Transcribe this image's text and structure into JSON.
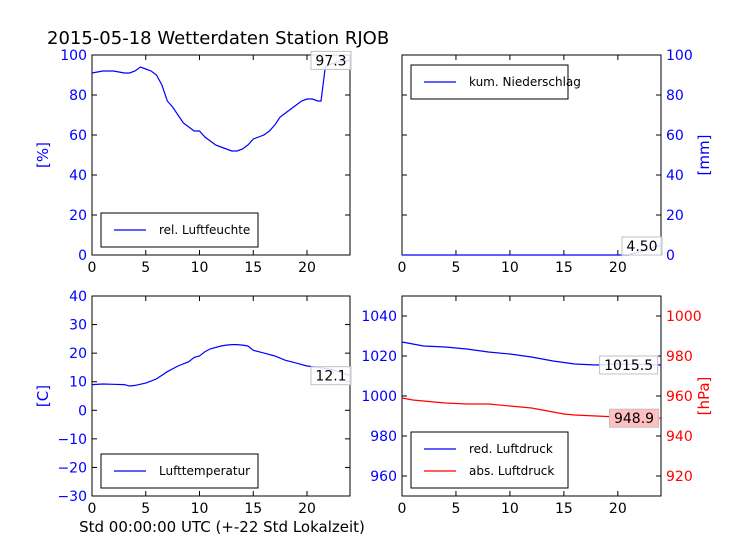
{
  "title": "2015-05-18 Wetterdaten Station RJOB",
  "xlabel": "Std 00:00:00 UTC (+-22 Std Lokalzeit)",
  "colors": {
    "blue": "#0000ff",
    "red": "#ff0000",
    "axis": "#000000",
    "label_bg": "#ffc0c0"
  },
  "chart_data": [
    {
      "type": "line",
      "panel": "top-left",
      "ylabel": "[%]",
      "ylabel_side": "left",
      "xlim": [
        0,
        24
      ],
      "ylim": [
        0,
        100
      ],
      "xticks": [
        0,
        5,
        10,
        15,
        20
      ],
      "yticks": [
        0,
        20,
        40,
        60,
        80,
        100
      ],
      "legend_position": "lower-left",
      "annotation": {
        "text": "97.3",
        "x": 23.5,
        "y": 97.3
      },
      "series": [
        {
          "name": "rel. Luftfeuchte",
          "color": "#0000ff",
          "x": [
            0,
            1,
            2,
            3,
            3.5,
            4,
            4.5,
            5,
            5.5,
            6,
            6.5,
            7,
            7.5,
            8,
            8.5,
            9,
            9.5,
            10,
            10.5,
            11,
            11.5,
            12,
            12.5,
            13,
            13.5,
            14,
            14.5,
            15,
            15.5,
            16,
            16.5,
            17,
            17.5,
            18,
            18.5,
            19,
            19.5,
            20,
            20.5,
            21,
            21.3,
            21.7,
            22,
            22.5,
            23,
            23.5,
            24
          ],
          "y": [
            91,
            92,
            92,
            91,
            91,
            92,
            94,
            93,
            92,
            90,
            85,
            77,
            74,
            70,
            66,
            64,
            62,
            62,
            59,
            57,
            55,
            54,
            53,
            52,
            52,
            53,
            55,
            58,
            59,
            60,
            62,
            65,
            69,
            71,
            73,
            75,
            77,
            78,
            78,
            77,
            77,
            94,
            95,
            96,
            97,
            97,
            97.3
          ]
        }
      ]
    },
    {
      "type": "line",
      "panel": "top-right",
      "ylabel": "[mm]",
      "ylabel_side": "right",
      "xlim": [
        0,
        24
      ],
      "ylim": [
        0,
        100
      ],
      "xticks": [
        0,
        5,
        10,
        15,
        20
      ],
      "yticks": [
        0,
        20,
        40,
        60,
        80,
        100
      ],
      "legend_position": "upper-left",
      "annotation": {
        "text": "4.50",
        "x": 22.5,
        "y": 4.5
      },
      "series": [
        {
          "name": "kum. Niederschlag",
          "color": "#0000ff",
          "x": [
            0,
            21,
            21.5,
            22,
            22.5,
            23,
            23.5,
            24
          ],
          "y": [
            0,
            0,
            1,
            1.5,
            2,
            3,
            4.5,
            4.5
          ]
        }
      ]
    },
    {
      "type": "line",
      "panel": "bottom-left",
      "ylabel": "[C]",
      "ylabel_side": "left",
      "xlim": [
        0,
        24
      ],
      "ylim": [
        -30,
        40
      ],
      "xticks": [
        0,
        5,
        10,
        15,
        20
      ],
      "yticks": [
        -30,
        -20,
        -10,
        0,
        10,
        20,
        30,
        40
      ],
      "legend_position": "lower-left",
      "annotation": {
        "text": "12.1",
        "x": 22.5,
        "y": 12.1
      },
      "series": [
        {
          "name": "Lufttemperatur",
          "color": "#0000ff",
          "x": [
            0,
            1,
            2,
            3,
            3.5,
            4,
            5,
            6,
            7,
            8,
            9,
            9.5,
            10,
            10.5,
            11,
            12,
            12.5,
            13,
            13.5,
            14,
            14.5,
            15,
            16,
            17,
            18,
            19,
            20,
            21,
            22,
            23,
            24
          ],
          "y": [
            9,
            9.2,
            9.1,
            9,
            8.5,
            8.7,
            9.5,
            11,
            13.5,
            15.5,
            17,
            18.5,
            19,
            20.5,
            21.5,
            22.5,
            22.8,
            23,
            23,
            22.8,
            22.5,
            21,
            20,
            19,
            17.5,
            16.5,
            15.5,
            15,
            14.5,
            13.5,
            12.1
          ]
        }
      ]
    },
    {
      "type": "line",
      "panel": "bottom-right",
      "ylabel": "[hPa]",
      "ylabel_side": "right",
      "xlim": [
        0,
        24
      ],
      "ylim_left": [
        950,
        1050
      ],
      "ylim_right": [
        910,
        1010
      ],
      "xticks": [
        0,
        5,
        10,
        15,
        20
      ],
      "yticks_left": [
        960,
        980,
        1000,
        1020,
        1040
      ],
      "yticks_right": [
        920,
        940,
        960,
        980,
        1000
      ],
      "legend_position": "lower-left",
      "annotations": [
        {
          "text": "1015.5",
          "x": 21,
          "y": 1015.5,
          "axis": "left"
        },
        {
          "text": "948.9",
          "x": 21.5,
          "y": 948.9,
          "axis": "right"
        }
      ],
      "series": [
        {
          "name": "red. Luftdruck",
          "color": "#0000ff",
          "axis": "left",
          "x": [
            0,
            2,
            4,
            6,
            8,
            10,
            12,
            14,
            16,
            18,
            20,
            22,
            24
          ],
          "y": [
            1027,
            1025,
            1024.5,
            1023.5,
            1022,
            1021,
            1019.5,
            1017.5,
            1016,
            1015.5,
            1016,
            1015.8,
            1015.5
          ]
        },
        {
          "name": "abs. Luftdruck",
          "color": "#ff0000",
          "axis": "right",
          "x": [
            0,
            1,
            2,
            4,
            6,
            8,
            10,
            11,
            12,
            13,
            14,
            15,
            16,
            18,
            20,
            22,
            24
          ],
          "y": [
            959,
            958,
            957.5,
            956.5,
            956,
            956,
            955,
            954.5,
            954,
            953,
            952,
            951,
            950.5,
            950,
            949.5,
            949,
            948.9
          ]
        }
      ]
    }
  ]
}
